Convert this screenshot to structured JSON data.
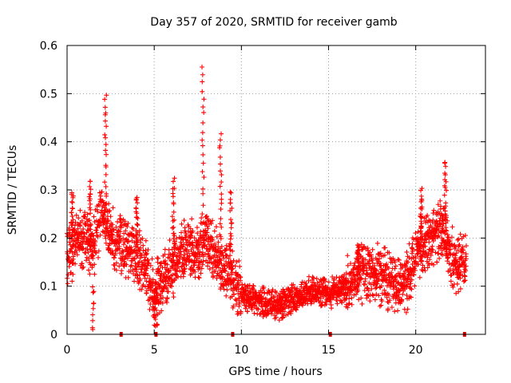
{
  "chart_data": {
    "type": "scatter",
    "title": "Day 357 of 2020, SRMTID for receiver gamb",
    "xlabel": "GPS time / hours",
    "ylabel": "SRMTID / TECUs",
    "xlim": [
      0,
      24
    ],
    "ylim": [
      0,
      0.6
    ],
    "xticks": [
      0,
      5,
      10,
      15,
      20
    ],
    "xtick_labels": [
      "0",
      "5",
      "10",
      "15",
      "20"
    ],
    "yticks": [
      0,
      0.1,
      0.2,
      0.3,
      0.4,
      0.5,
      0.6
    ],
    "ytick_labels": [
      "0",
      "0.1",
      "0.2",
      "0.3",
      "0.4",
      "0.5",
      "0.6"
    ],
    "grid": true,
    "marker": "+",
    "color": "#ff0000",
    "zero_markers_x": [
      3.1,
      5.1,
      9.5,
      15.1,
      22.8
    ],
    "envelope": [
      {
        "t": 0.0,
        "y": 0.16
      },
      {
        "t": 0.5,
        "y": 0.19
      },
      {
        "t": 1.0,
        "y": 0.2
      },
      {
        "t": 1.5,
        "y": 0.18
      },
      {
        "t": 2.0,
        "y": 0.26
      },
      {
        "t": 2.5,
        "y": 0.2
      },
      {
        "t": 3.0,
        "y": 0.19
      },
      {
        "t": 3.5,
        "y": 0.18
      },
      {
        "t": 4.0,
        "y": 0.17
      },
      {
        "t": 4.5,
        "y": 0.13
      },
      {
        "t": 5.0,
        "y": 0.09
      },
      {
        "t": 5.5,
        "y": 0.11
      },
      {
        "t": 6.0,
        "y": 0.14
      },
      {
        "t": 6.5,
        "y": 0.17
      },
      {
        "t": 7.0,
        "y": 0.18
      },
      {
        "t": 7.5,
        "y": 0.16
      },
      {
        "t": 8.0,
        "y": 0.2
      },
      {
        "t": 8.5,
        "y": 0.17
      },
      {
        "t": 9.0,
        "y": 0.13
      },
      {
        "t": 9.5,
        "y": 0.12
      },
      {
        "t": 10.0,
        "y": 0.08
      },
      {
        "t": 11.0,
        "y": 0.07
      },
      {
        "t": 12.0,
        "y": 0.06
      },
      {
        "t": 13.0,
        "y": 0.07
      },
      {
        "t": 14.0,
        "y": 0.09
      },
      {
        "t": 15.0,
        "y": 0.085
      },
      {
        "t": 16.0,
        "y": 0.1
      },
      {
        "t": 17.0,
        "y": 0.13
      },
      {
        "t": 18.0,
        "y": 0.12
      },
      {
        "t": 19.0,
        "y": 0.1
      },
      {
        "t": 19.5,
        "y": 0.11
      },
      {
        "t": 20.0,
        "y": 0.17
      },
      {
        "t": 20.5,
        "y": 0.19
      },
      {
        "t": 21.0,
        "y": 0.2
      },
      {
        "t": 21.5,
        "y": 0.22
      },
      {
        "t": 22.0,
        "y": 0.16
      },
      {
        "t": 22.5,
        "y": 0.14
      },
      {
        "t": 22.8,
        "y": 0.15
      }
    ],
    "peaks": [
      {
        "t": 2.2,
        "y": 0.5
      },
      {
        "t": 7.8,
        "y": 0.56
      },
      {
        "t": 8.8,
        "y": 0.42
      },
      {
        "t": 21.7,
        "y": 0.36
      },
      {
        "t": 0.3,
        "y": 0.3
      },
      {
        "t": 6.1,
        "y": 0.32
      },
      {
        "t": 4.0,
        "y": 0.29
      },
      {
        "t": 9.4,
        "y": 0.3
      },
      {
        "t": 1.3,
        "y": 0.32
      },
      {
        "t": 16.7,
        "y": 0.19
      },
      {
        "t": 20.3,
        "y": 0.3
      }
    ],
    "data_start_hour": 0.0,
    "data_end_hour": 22.9
  }
}
